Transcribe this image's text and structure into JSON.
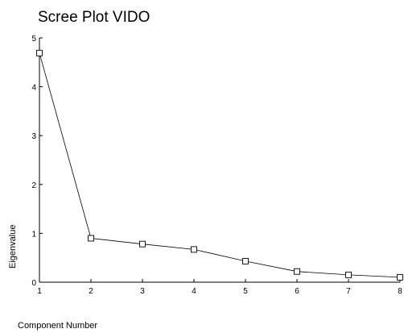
{
  "chart_data": {
    "type": "line",
    "title": "Scree Plot VIDO",
    "xlabel": "Component Number",
    "ylabel": "Eigenvalue",
    "x": [
      1,
      2,
      3,
      4,
      5,
      6,
      7,
      8
    ],
    "x_ticks": [
      "1",
      "2",
      "3",
      "4",
      "5",
      "6",
      "7",
      "8"
    ],
    "y_ticks": [
      "0",
      "1",
      "2",
      "3",
      "4",
      "5"
    ],
    "xlim": [
      1,
      8
    ],
    "ylim": [
      0,
      5
    ],
    "grid": false,
    "marker": "hollow-square",
    "series": [
      {
        "values": [
          4.69,
          0.9,
          0.78,
          0.67,
          0.43,
          0.22,
          0.15,
          0.1
        ]
      }
    ]
  }
}
